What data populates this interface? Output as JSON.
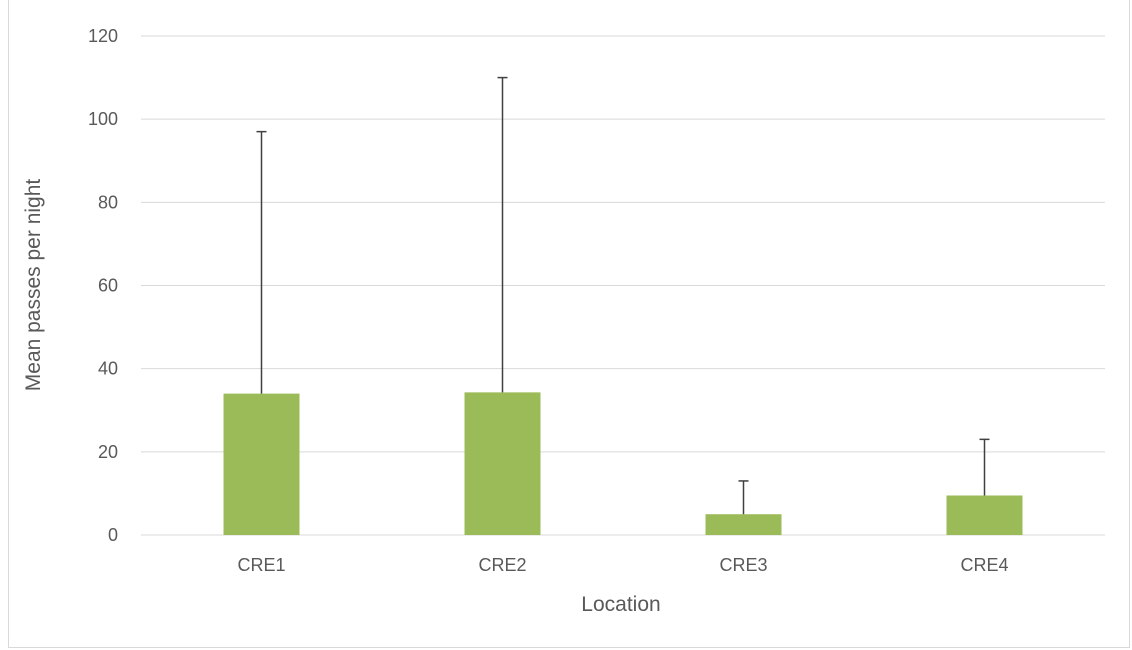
{
  "chart_data": {
    "type": "bar",
    "title": "",
    "xlabel": "Location",
    "ylabel": "Mean passes per night",
    "categories": [
      "CRE1",
      "CRE2",
      "CRE3",
      "CRE4"
    ],
    "series": [
      {
        "values": [
          34,
          34.3,
          5,
          9.5
        ],
        "error_upper": [
          97,
          110,
          13,
          23
        ]
      }
    ],
    "ylim": [
      0,
      120
    ],
    "yticks": [
      0,
      20,
      40,
      60,
      80,
      100,
      120
    ],
    "grid": true,
    "legend": "none",
    "colors": {
      "bar": "#9bbb59",
      "grid": "#d9d9d9",
      "error_bar": "#404040",
      "text": "#595959"
    }
  }
}
